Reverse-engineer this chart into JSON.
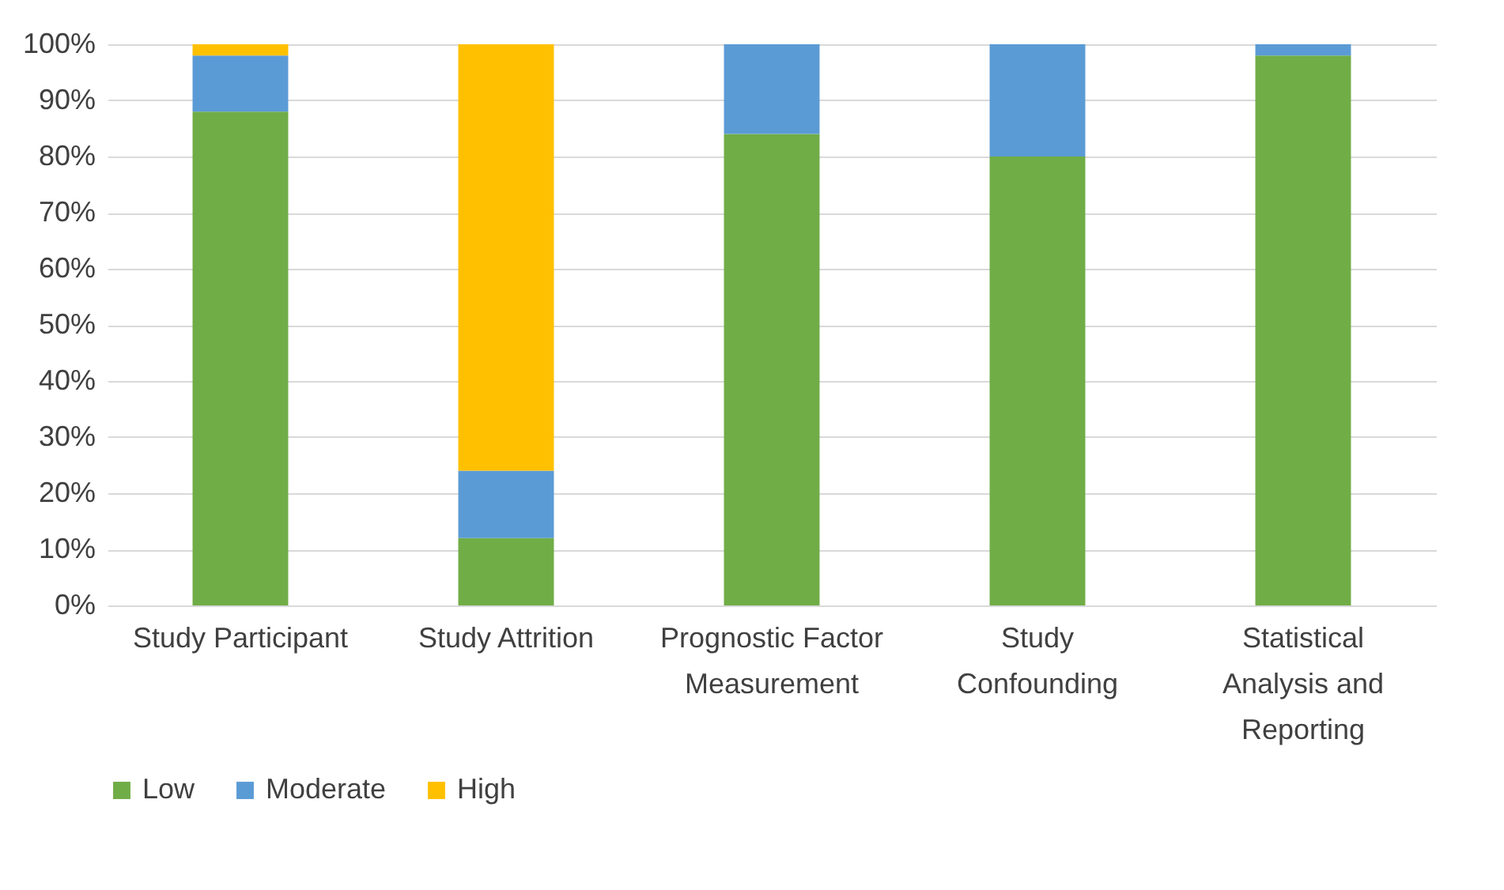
{
  "chart_data": {
    "type": "bar",
    "stacked": true,
    "categories": [
      "Study Participant",
      "Study Attrition",
      "Prognostic Factor Measurement",
      "Study Confounding",
      "Statistical Analysis and Reporting"
    ],
    "series": [
      {
        "name": "Low",
        "color": "#70ad47",
        "values": [
          88,
          12,
          84,
          80,
          98
        ]
      },
      {
        "name": "Moderate",
        "color": "#5b9bd5",
        "values": [
          10,
          12,
          16,
          20,
          2
        ]
      },
      {
        "name": "High",
        "color": "#ffc000",
        "values": [
          2,
          76,
          0,
          0,
          0
        ]
      }
    ],
    "ylim": [
      0,
      100
    ],
    "yticks": [
      {
        "value": 0,
        "label": "0%"
      },
      {
        "value": 10,
        "label": "10%"
      },
      {
        "value": 20,
        "label": "20%"
      },
      {
        "value": 30,
        "label": "30%"
      },
      {
        "value": 40,
        "label": "40%"
      },
      {
        "value": 50,
        "label": "50%"
      },
      {
        "value": 60,
        "label": "60%"
      },
      {
        "value": 70,
        "label": "70%"
      },
      {
        "value": 80,
        "label": "80%"
      },
      {
        "value": 90,
        "label": "90%"
      },
      {
        "value": 100,
        "label": "100%"
      }
    ],
    "grid": "y",
    "legend": "bottom"
  }
}
